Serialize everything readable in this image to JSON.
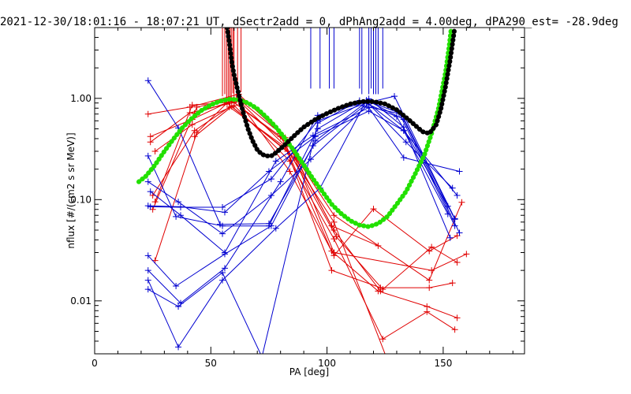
{
  "chart_data": {
    "type": "line",
    "title": "2021-12-30/18:01:16 - 18:07:21 UT, dSectr2add = 0, dPhAng2add = 4.00deg, dPA290_est= -28.9deg",
    "xlabel": "PA [deg]",
    "ylabel": "nflux [#/(cm2 s sr MeV)]",
    "xlim": [
      0,
      185
    ],
    "ylim": [
      0.003,
      5
    ],
    "yscale": "log",
    "x_ticks": [
      0,
      50,
      100,
      150
    ],
    "x_tick_labels": [
      "0",
      "50",
      "100",
      "150"
    ],
    "y_ticks": [
      0.01,
      0.1,
      1.0
    ],
    "y_tick_labels": [
      "0.01",
      "0.10",
      "1.00"
    ],
    "x_minor_step": 10,
    "colors": {
      "red": "#e00000",
      "blue": "#0000d0",
      "green": "#22e000",
      "black": "#000000"
    },
    "series": [
      {
        "color": "red",
        "points": [
          [
            23,
            0.7
          ],
          [
            41,
            0.82
          ],
          [
            62,
            1.1
          ],
          [
            82,
            0.41
          ],
          [
            102,
            0.055
          ],
          [
            122,
            0.035
          ]
        ]
      },
      {
        "color": "red",
        "points": [
          [
            24,
            0.42
          ],
          [
            42,
            0.62
          ],
          [
            59,
            0.95
          ],
          [
            83,
            0.36
          ],
          [
            103,
            0.05
          ],
          [
            123,
            0.0125
          ]
        ]
      },
      {
        "color": "red",
        "points": [
          [
            24,
            0.37
          ],
          [
            41,
            0.72
          ],
          [
            60,
            0.91
          ],
          [
            80,
            0.42
          ],
          [
            104,
            0.043
          ],
          [
            124,
            0.013
          ],
          [
            145,
            0.034
          ],
          [
            156,
            0.024
          ]
        ]
      },
      {
        "color": "red",
        "points": [
          [
            25,
            0.08
          ],
          [
            44,
            0.82
          ],
          [
            61,
            1.0
          ],
          [
            82,
            0.34
          ],
          [
            102,
            0.02
          ],
          [
            123,
            0.0135
          ],
          [
            144,
            0.0135
          ],
          [
            154,
            0.015
          ]
        ]
      },
      {
        "color": "red",
        "points": [
          [
            26,
            0.095
          ],
          [
            42,
            0.86
          ],
          [
            62,
            0.93
          ],
          [
            84,
            0.19
          ],
          [
            103,
            0.028
          ],
          [
            120,
            0.081
          ],
          [
            144,
            0.031
          ],
          [
            156,
            0.044
          ]
        ]
      },
      {
        "color": "red",
        "points": [
          [
            26,
            0.025
          ],
          [
            44,
            0.46
          ],
          [
            57,
            0.9
          ],
          [
            83,
            0.3
          ],
          [
            102,
            0.031
          ],
          [
            122,
            0.0125
          ],
          [
            143,
            0.0088
          ],
          [
            156,
            0.0068
          ]
        ]
      },
      {
        "color": "red",
        "points": [
          [
            26,
            0.3
          ],
          [
            42,
            0.55
          ],
          [
            60,
            0.85
          ],
          [
            84,
            0.24
          ],
          [
            103,
            0.041
          ],
          [
            124,
            0.0042
          ],
          [
            143,
            0.0078
          ],
          [
            155,
            0.0052
          ]
        ]
      },
      {
        "color": "red",
        "points": [
          [
            25,
            0.11
          ],
          [
            43,
            0.48
          ],
          [
            58,
            0.82
          ],
          [
            82,
            0.33
          ],
          [
            103,
            0.06
          ],
          [
            126,
            0.0026
          ]
        ]
      },
      {
        "color": "red",
        "points": [
          [
            43,
            0.71
          ],
          [
            62,
            0.98
          ],
          [
            80,
            0.45
          ],
          [
            103,
            0.07
          ],
          [
            144,
            0.016
          ],
          [
            158,
            0.094
          ]
        ]
      },
      {
        "color": "red",
        "points": [
          [
            43,
            0.42
          ],
          [
            59,
            0.83
          ],
          [
            86,
            0.26
          ],
          [
            103,
            0.03
          ],
          [
            145,
            0.02
          ],
          [
            160,
            0.029
          ]
        ]
      },
      {
        "color": "blue",
        "points": [
          [
            23,
            1.5
          ],
          [
            36,
            0.51
          ],
          [
            54,
            0.057
          ],
          [
            75,
            0.058
          ],
          [
            94,
            0.34
          ],
          [
            116,
            0.84
          ],
          [
            132,
            0.7
          ],
          [
            155,
            0.064
          ]
        ]
      },
      {
        "color": "blue",
        "points": [
          [
            23,
            0.27
          ],
          [
            35,
            0.068
          ],
          [
            55,
            0.055
          ],
          [
            75,
            0.055
          ],
          [
            96,
            0.5
          ],
          [
            118,
            0.99
          ],
          [
            133,
            0.52
          ],
          [
            153,
            0.042
          ]
        ]
      },
      {
        "color": "blue",
        "points": [
          [
            23,
            0.15
          ],
          [
            36,
            0.095
          ],
          [
            55,
            0.046
          ],
          [
            76,
            0.11
          ],
          [
            93,
            0.25
          ],
          [
            118,
            0.88
          ],
          [
            134,
            0.37
          ],
          [
            154,
            0.13
          ]
        ]
      },
      {
        "color": "blue",
        "points": [
          [
            24,
            0.12
          ],
          [
            37,
            0.07
          ],
          [
            56,
            0.03
          ],
          [
            78,
            0.24
          ],
          [
            94,
            0.43
          ],
          [
            118,
            0.81
          ],
          [
            133,
            0.26
          ],
          [
            157,
            0.19
          ]
        ]
      },
      {
        "color": "blue",
        "points": [
          [
            23,
            0.087
          ],
          [
            37,
            0.085
          ],
          [
            56,
            0.075
          ],
          [
            75,
            0.19
          ],
          [
            95,
            0.42
          ],
          [
            118,
            0.75
          ],
          [
            133,
            0.48
          ],
          [
            156,
            0.11
          ]
        ]
      },
      {
        "color": "blue",
        "points": [
          [
            24,
            0.085
          ],
          [
            37,
            0.084
          ],
          [
            55,
            0.084
          ],
          [
            76,
            0.16
          ],
          [
            96,
            0.6
          ],
          [
            117,
            0.9
          ],
          [
            129,
            1.05
          ],
          [
            155,
            0.065
          ]
        ]
      },
      {
        "color": "blue",
        "points": [
          [
            23,
            0.028
          ],
          [
            35,
            0.014
          ],
          [
            56,
            0.029
          ],
          [
            76,
            0.055
          ],
          [
            95,
            0.38
          ],
          [
            117,
            0.92
          ],
          [
            133,
            0.48
          ],
          [
            152,
            0.072
          ]
        ]
      },
      {
        "color": "blue",
        "points": [
          [
            23,
            0.02
          ],
          [
            37,
            0.0095
          ],
          [
            56,
            0.021
          ],
          [
            80,
            0.15
          ],
          [
            96,
            0.68
          ],
          [
            118,
            0.93
          ],
          [
            131,
            0.72
          ],
          [
            155,
            0.055
          ]
        ]
      },
      {
        "color": "blue",
        "points": [
          [
            23,
            0.016
          ],
          [
            36,
            0.0035
          ],
          [
            55,
            0.016
          ],
          [
            78,
            0.052
          ],
          [
            97,
            0.13
          ],
          [
            117,
            0.96
          ],
          [
            133,
            0.62
          ],
          [
            157,
            0.047
          ]
        ]
      },
      {
        "color": "blue",
        "points": [
          [
            23,
            0.013
          ],
          [
            36,
            0.0088
          ],
          [
            55,
            0.019
          ],
          [
            72,
            0.0028
          ],
          [
            96,
            0.57
          ],
          [
            114,
            0.95
          ],
          [
            130,
            0.66
          ],
          [
            152,
            0.086
          ]
        ]
      }
    ],
    "black_curve": [
      [
        57,
        5
      ],
      [
        58,
        3.5
      ],
      [
        59,
        2.3
      ],
      [
        60,
        1.7
      ],
      [
        62,
        1.1
      ],
      [
        64,
        0.72
      ],
      [
        66,
        0.5
      ],
      [
        68,
        0.38
      ],
      [
        70,
        0.31
      ],
      [
        72,
        0.28
      ],
      [
        74,
        0.27
      ],
      [
        76,
        0.27
      ],
      [
        78,
        0.29
      ],
      [
        82,
        0.35
      ],
      [
        86,
        0.43
      ],
      [
        90,
        0.52
      ],
      [
        95,
        0.62
      ],
      [
        100,
        0.71
      ],
      [
        105,
        0.8
      ],
      [
        110,
        0.88
      ],
      [
        115,
        0.93
      ],
      [
        120,
        0.93
      ],
      [
        125,
        0.88
      ],
      [
        130,
        0.77
      ],
      [
        135,
        0.62
      ],
      [
        138,
        0.54
      ],
      [
        141,
        0.47
      ],
      [
        144,
        0.45
      ],
      [
        147,
        0.55
      ],
      [
        149,
        0.78
      ],
      [
        151,
        1.3
      ],
      [
        153,
        2.4
      ],
      [
        155,
        5
      ]
    ],
    "green_curve": [
      [
        19,
        0.15
      ],
      [
        22,
        0.17
      ],
      [
        26,
        0.22
      ],
      [
        30,
        0.3
      ],
      [
        34,
        0.4
      ],
      [
        38,
        0.52
      ],
      [
        42,
        0.64
      ],
      [
        46,
        0.76
      ],
      [
        50,
        0.86
      ],
      [
        54,
        0.94
      ],
      [
        58,
        0.98
      ],
      [
        62,
        0.97
      ],
      [
        66,
        0.9
      ],
      [
        70,
        0.79
      ],
      [
        74,
        0.65
      ],
      [
        78,
        0.52
      ],
      [
        82,
        0.4
      ],
      [
        86,
        0.3
      ],
      [
        90,
        0.22
      ],
      [
        94,
        0.16
      ],
      [
        98,
        0.12
      ],
      [
        102,
        0.09
      ],
      [
        106,
        0.073
      ],
      [
        110,
        0.062
      ],
      [
        114,
        0.056
      ],
      [
        118,
        0.054
      ],
      [
        122,
        0.058
      ],
      [
        126,
        0.068
      ],
      [
        130,
        0.09
      ],
      [
        134,
        0.12
      ],
      [
        138,
        0.18
      ],
      [
        142,
        0.28
      ],
      [
        145,
        0.45
      ],
      [
        148,
        0.8
      ],
      [
        151,
        1.8
      ],
      [
        152.5,
        3.2
      ],
      [
        153.5,
        5
      ]
    ],
    "red_vertical_lines": [
      55,
      56,
      56.8,
      57.5,
      58.2,
      58.8,
      59.5,
      60,
      61.5,
      63
    ],
    "red_vertical_bottoms": [
      1.05,
      1.1,
      0.95,
      0.9,
      0.85,
      1.0,
      1.12,
      0.93,
      1.02,
      1.15
    ],
    "blue_vertical_lines": [
      93,
      97,
      101,
      103,
      114,
      115,
      118,
      119,
      120,
      121,
      122,
      124
    ],
    "blue_vertical_bottoms": [
      1.25,
      1.25,
      1.25,
      1.25,
      1.25,
      1.1,
      1.1,
      1.25,
      1.1,
      1.1,
      1.1,
      1.25
    ]
  }
}
